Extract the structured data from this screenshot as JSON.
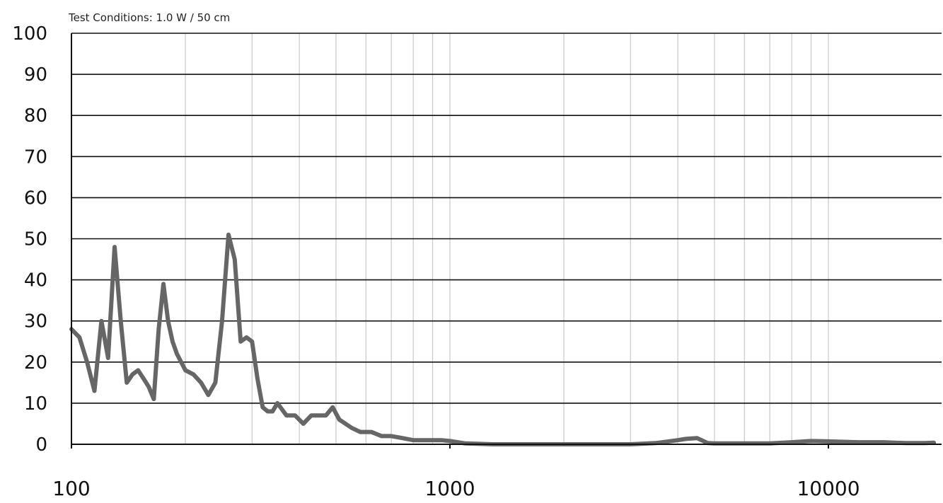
{
  "chart_data": {
    "type": "line",
    "subtitle": "Test Conditions: 1.0 W / 50 cm",
    "title": "",
    "xlabel": "",
    "ylabel": "",
    "x_scale": "log",
    "xlim": [
      100,
      19000
    ],
    "ylim": [
      0,
      100
    ],
    "grid": true,
    "legend": "none",
    "yticks": [
      "0",
      "10",
      "20",
      "30",
      "40",
      "50",
      "60",
      "70",
      "80",
      "90",
      "100"
    ],
    "xticks": [
      {
        "value": 100,
        "label": "100"
      },
      {
        "value": 1000,
        "label": "1000"
      },
      {
        "value": 10000,
        "label": "10000"
      }
    ],
    "line_color": "#666666",
    "series": [
      {
        "x": [
          100,
          105,
          110,
          115,
          120,
          125,
          130,
          135,
          140,
          145,
          150,
          155,
          160,
          165,
          170,
          175,
          180,
          185,
          190,
          200,
          210,
          220,
          230,
          240,
          250,
          260,
          270,
          280,
          290,
          300,
          310,
          320,
          330,
          340,
          350,
          370,
          390,
          410,
          430,
          450,
          470,
          490,
          510,
          530,
          550,
          580,
          620,
          660,
          700,
          750,
          800,
          850,
          900,
          950,
          1000,
          1100,
          1200,
          1300,
          1500,
          1800,
          2000,
          2500,
          3000,
          3500,
          4000,
          4200,
          4500,
          4800,
          5000,
          5500,
          6000,
          7000,
          8000,
          9000,
          10000,
          12000,
          14000,
          16000,
          18000,
          19000
        ],
        "y": [
          28,
          26,
          20,
          13,
          30,
          21,
          48,
          30,
          15,
          17,
          18,
          16,
          14,
          11,
          28,
          39,
          30,
          25,
          22,
          18,
          17,
          15,
          12,
          15,
          30,
          51,
          45,
          25,
          26,
          25,
          16,
          9,
          8,
          8,
          10,
          7,
          7,
          5,
          7,
          7,
          7,
          9,
          6,
          5,
          4,
          3,
          3,
          2,
          2,
          1.5,
          1,
          1,
          1,
          1,
          0.8,
          0.2,
          0.1,
          0,
          0,
          0,
          0,
          0,
          0,
          0.3,
          1,
          1.3,
          1.5,
          0.3,
          0.2,
          0.2,
          0.2,
          0.2,
          0.5,
          0.8,
          0.7,
          0.5,
          0.5,
          0.3,
          0.3,
          0.4
        ]
      }
    ]
  }
}
